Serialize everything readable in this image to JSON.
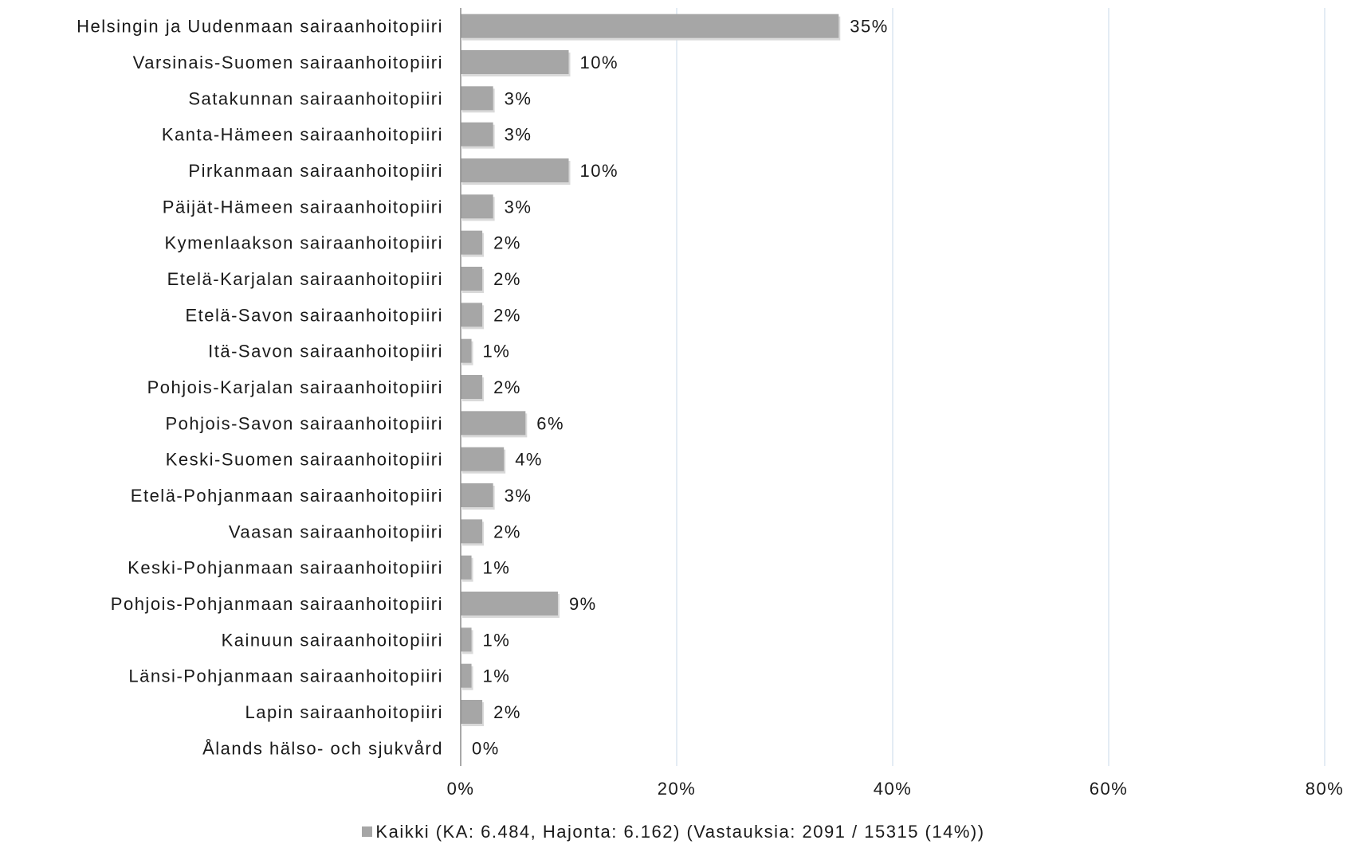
{
  "chart_data": {
    "type": "bar",
    "orientation": "horizontal",
    "categories": [
      "Helsingin ja Uudenmaan sairaanhoitopiiri",
      "Varsinais-Suomen sairaanhoitopiiri",
      "Satakunnan sairaanhoitopiiri",
      "Kanta-Hämeen sairaanhoitopiiri",
      "Pirkanmaan sairaanhoitopiiri",
      "Päijät-Hämeen sairaanhoitopiiri",
      "Kymenlaakson sairaanhoitopiiri",
      "Etelä-Karjalan sairaanhoitopiiri",
      "Etelä-Savon sairaanhoitopiiri",
      "Itä-Savon sairaanhoitopiiri",
      "Pohjois-Karjalan sairaanhoitopiiri",
      "Pohjois-Savon sairaanhoitopiiri",
      "Keski-Suomen sairaanhoitopiiri",
      "Etelä-Pohjanmaan sairaanhoitopiiri",
      "Vaasan sairaanhoitopiiri",
      "Keski-Pohjanmaan sairaanhoitopiiri",
      "Pohjois-Pohjanmaan sairaanhoitopiiri",
      "Kainuun sairaanhoitopiiri",
      "Länsi-Pohjanmaan sairaanhoitopiiri",
      "Lapin sairaanhoitopiiri",
      "Ålands hälso- och sjukvård"
    ],
    "series": [
      {
        "name": "Kaikki (KA: 6.484, Hajonta: 6.162) (Vastauksia: 2091 / 15315 (14%))",
        "values": [
          35,
          10,
          3,
          3,
          10,
          3,
          2,
          2,
          2,
          1,
          2,
          6,
          4,
          3,
          2,
          1,
          9,
          1,
          1,
          2,
          0
        ],
        "labels": [
          "35%",
          "10%",
          "3%",
          "3%",
          "10%",
          "3%",
          "2%",
          "2%",
          "2%",
          "1%",
          "2%",
          "6%",
          "4%",
          "3%",
          "2%",
          "1%",
          "9%",
          "1%",
          "1%",
          "2%",
          "0%"
        ],
        "color": "#a6a6a6"
      }
    ],
    "xlim": [
      0,
      80
    ],
    "xticks": [
      0,
      20,
      40,
      60,
      80
    ],
    "xtick_labels": [
      "0%",
      "20%",
      "40%",
      "60%",
      "80%"
    ],
    "grid": "vertical",
    "legend_position": "bottom",
    "colors": {
      "bar": "#a6a6a6",
      "grid": "#dbe5f1",
      "axis": "#8c8c8c"
    }
  }
}
